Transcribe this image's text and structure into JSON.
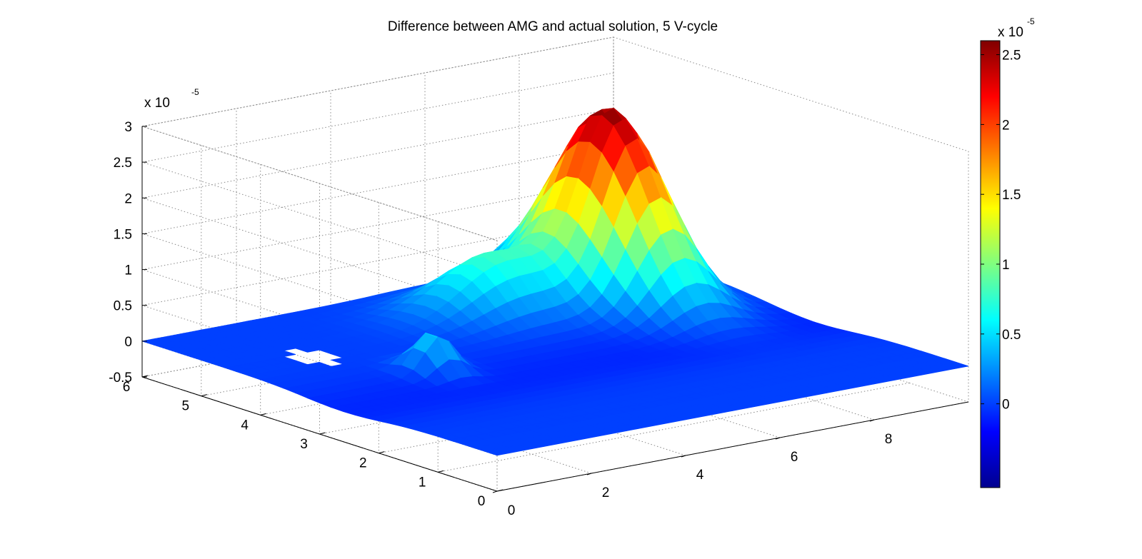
{
  "chart_data": {
    "type": "surface",
    "title": "Difference between AMG and actual solution, 5 V-cycle",
    "x_axis": {
      "range": [
        0,
        10
      ],
      "ticks": [
        0,
        2,
        4,
        6,
        8
      ],
      "label": ""
    },
    "y_axis": {
      "range": [
        0,
        6
      ],
      "ticks": [
        0,
        1,
        2,
        3,
        4,
        5,
        6
      ],
      "label": ""
    },
    "z_axis": {
      "range": [
        -0.5,
        3
      ],
      "ticks": [
        -0.5,
        0,
        0.5,
        1,
        1.5,
        2,
        2.5,
        3
      ],
      "multiplier_base": "x 10",
      "multiplier_exp": "-5",
      "label": ""
    },
    "colorbar": {
      "range": [
        -0.6,
        2.6
      ],
      "ticks": [
        0,
        0.5,
        1,
        1.5,
        2,
        2.5
      ],
      "multiplier_base": "x 10",
      "multiplier_exp": "-5",
      "colormap": "jet"
    },
    "grid": true,
    "surface_features": [
      {
        "kind": "peak",
        "x": 8.2,
        "y": 4.6,
        "z": 2.55
      },
      {
        "kind": "ridge",
        "x": 6.0,
        "y": 4.8,
        "z": 0.8
      },
      {
        "kind": "bump",
        "x": 2.8,
        "y": 3.3,
        "z": 0.55
      },
      {
        "kind": "hole",
        "x": 1.6,
        "y": 4.4
      }
    ],
    "baseline_z": 0.0
  }
}
